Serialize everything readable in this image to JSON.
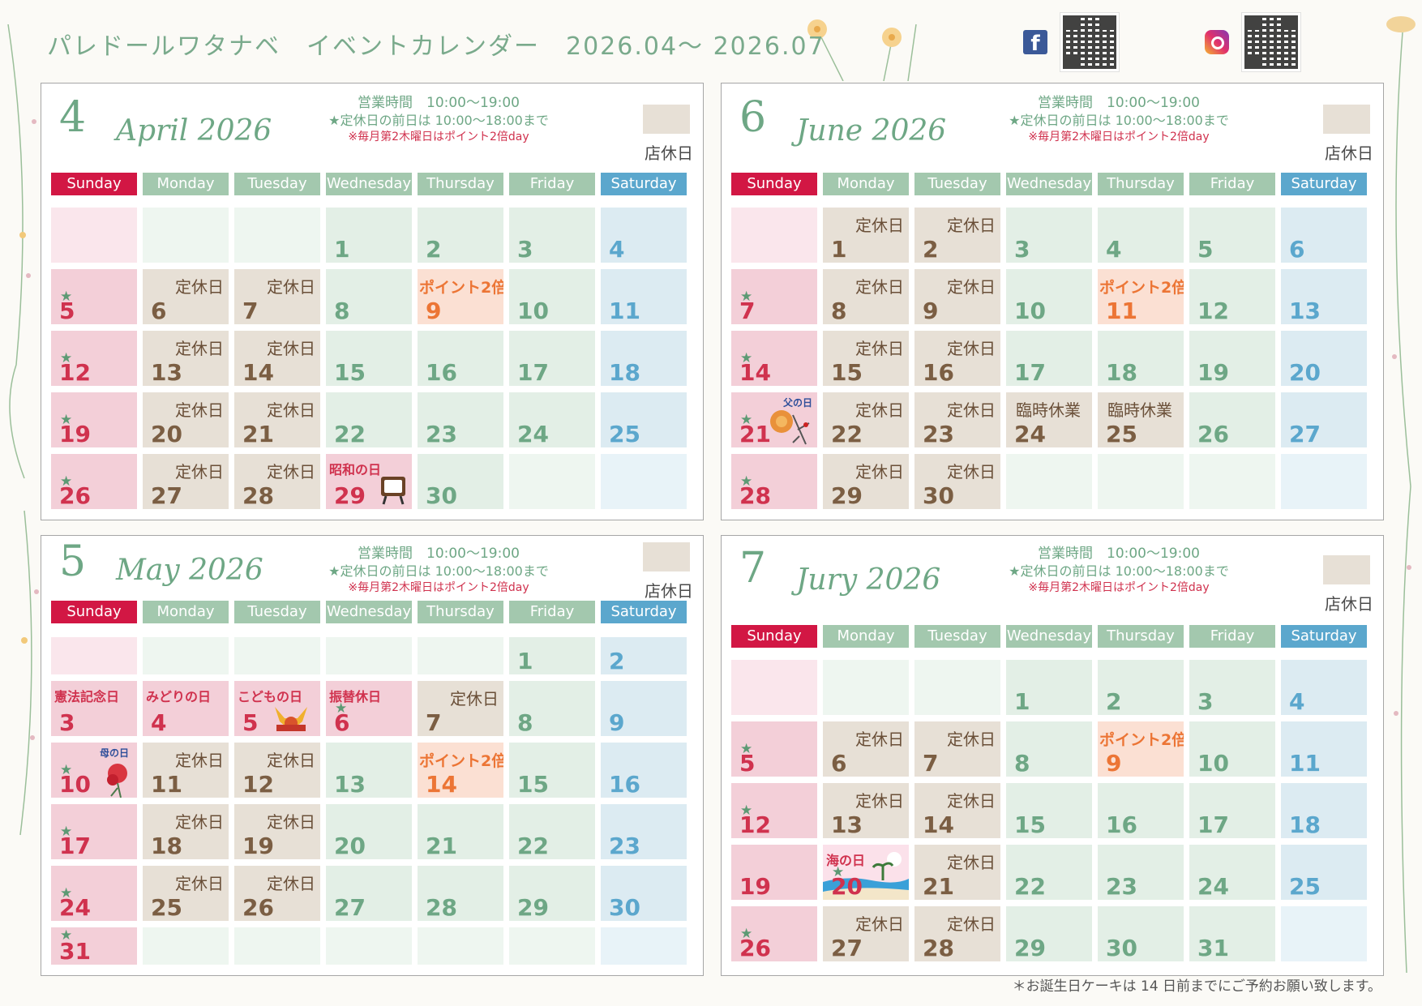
{
  "header": {
    "title": "パレドールワタナベ　イベントカレンダー　2026.04～ 2026.07"
  },
  "colors": {
    "green": "#6ea785",
    "sunday": "#d21744",
    "saturday": "#5ba7cd",
    "closed": "#e7e0d6",
    "point": "#ec7535"
  },
  "icons": {
    "social": [
      "facebook-icon",
      "instagram-icon"
    ],
    "qr": [
      "qr-code-facebook",
      "qr-code-instagram"
    ]
  },
  "common": {
    "hours": "営業時間　10:00～19:00",
    "early": "★定休日の前日は 10:00～18:00まで",
    "point_note": "※毎月第2木曜日はポイント2倍day",
    "legend": "店休日",
    "closed_label": "定休日",
    "point_label": "ポイント2倍",
    "temp_closed_label": "臨時休業",
    "star": "★",
    "weekdays": [
      "Sunday",
      "Monday",
      "Tuesday",
      "Wednesday",
      "Thursday",
      "Friday",
      "Saturday"
    ]
  },
  "months": {
    "april": {
      "num": "4",
      "name": "April 2026"
    },
    "may": {
      "num": "5",
      "name": "May 2026"
    },
    "june": {
      "num": "6",
      "name": "June 2026"
    },
    "july": {
      "num": "7",
      "name": "Jury 2026"
    }
  },
  "holidays": {
    "showa": "昭和の日",
    "constitution": "憲法記念日",
    "greenery": "みどりの日",
    "children": "こどもの日",
    "substitute": "振替休日",
    "mothers": "母の日",
    "fathers": "父の日",
    "marine": "海の日"
  },
  "footer": "＊お誕生日ケーキは 14 日前までにご予約お願い致します。"
}
